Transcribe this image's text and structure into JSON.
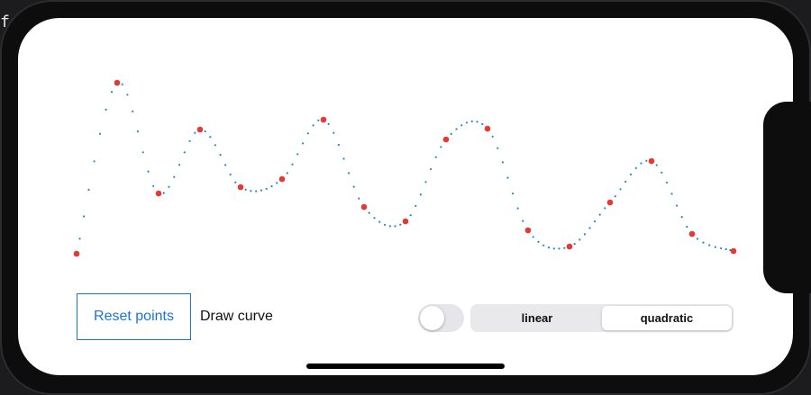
{
  "background": {
    "editor_text": "f"
  },
  "controls": {
    "reset_label": "Reset points",
    "draw_curve_label": "Draw curve",
    "draw_curve_on": false,
    "segments": [
      {
        "label": "linear",
        "selected": false
      },
      {
        "label": "quadratic",
        "selected": true
      }
    ]
  },
  "colors": {
    "point": "#e53935",
    "curve_dot": "#1e88c8",
    "button_accent": "#1a73d9"
  },
  "icons": {
    "home_indicator": "home-indicator-bar"
  }
}
